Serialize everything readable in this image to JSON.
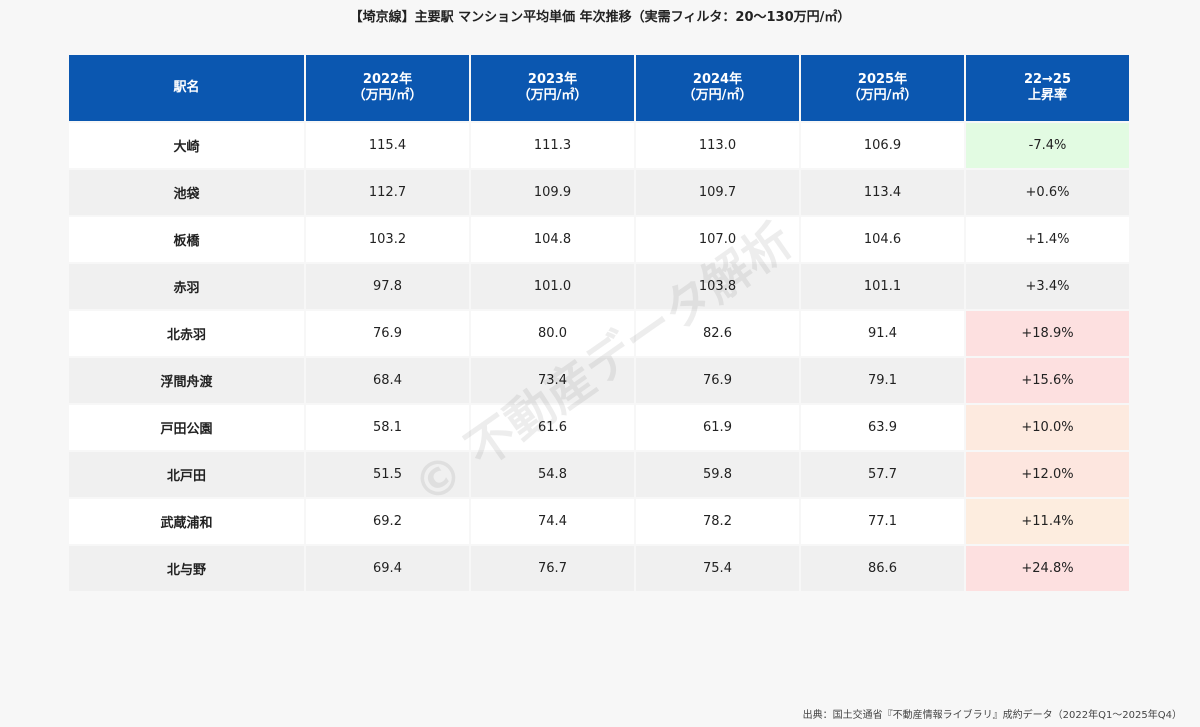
{
  "header": {
    "title": "【埼京線】主要駅 マンション平均単価 年次推移（実需フィルタ：20〜130万円/㎡）"
  },
  "table": {
    "columns": [
      [
        "駅名"
      ],
      [
        "2022年",
        "（万円/㎡）"
      ],
      [
        "2023年",
        "（万円/㎡）"
      ],
      [
        "2024年",
        "（万円/㎡）"
      ],
      [
        "2025年",
        "（万円/㎡）"
      ],
      [
        "22→25",
        "上昇率"
      ]
    ],
    "rows": [
      [
        "大崎",
        "115.4",
        "111.3",
        "113.0",
        "106.9",
        "-7.4%"
      ],
      [
        "池袋",
        "112.7",
        "109.9",
        "109.7",
        "113.4",
        "+0.6%"
      ],
      [
        "板橋",
        "103.2",
        "104.8",
        "107.0",
        "104.6",
        "+1.4%"
      ],
      [
        "赤羽",
        "97.8",
        "101.0",
        "103.8",
        "101.1",
        "+3.4%"
      ],
      [
        "北赤羽",
        "76.9",
        "80.0",
        "82.6",
        "91.4",
        "+18.9%"
      ],
      [
        "浮間舟渡",
        "68.4",
        "73.4",
        "76.9",
        "79.1",
        "+15.6%"
      ],
      [
        "戸田公園",
        "58.1",
        "61.6",
        "61.9",
        "63.9",
        "+10.0%"
      ],
      [
        "北戸田",
        "51.5",
        "54.8",
        "59.8",
        "57.7",
        "+12.0%"
      ],
      [
        "武蔵浦和",
        "69.2",
        "74.4",
        "78.2",
        "77.1",
        "+11.4%"
      ],
      [
        "北与野",
        "69.4",
        "76.7",
        "75.4",
        "86.6",
        "+24.8%"
      ]
    ],
    "rate_colors": [
      "#e2fbe2",
      null,
      null,
      null,
      "#fde0e0",
      "#fde0e0",
      "#fdeadf",
      "#fde6df",
      "#fdeddf",
      "#fde0e0"
    ]
  },
  "watermark": "© 不動産データ解析",
  "footer": {
    "source": "出典：国土交通省『不動産情報ライブラリ』成約データ（2022年Q1〜2025年Q4）"
  }
}
